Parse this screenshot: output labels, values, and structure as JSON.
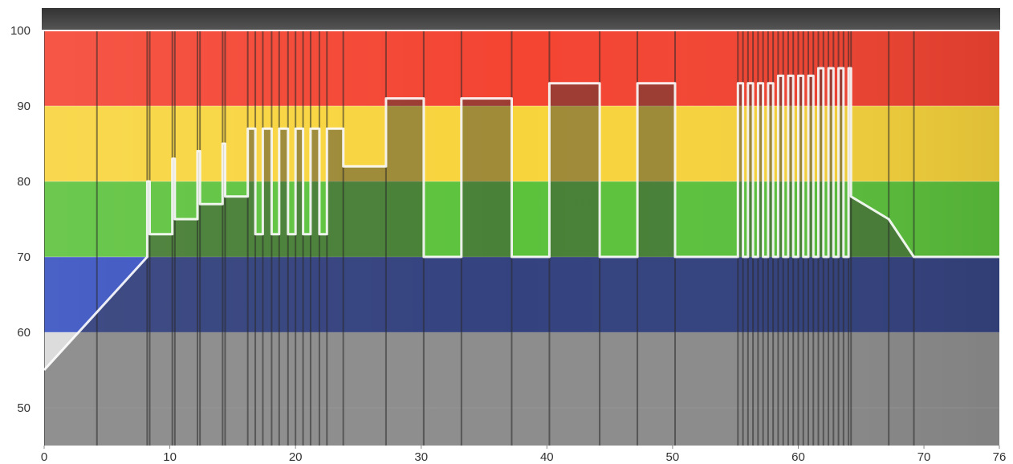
{
  "chart_data": {
    "type": "area",
    "xlim": [
      0,
      76
    ],
    "ylim": [
      45,
      100
    ],
    "x_ticks": [
      {
        "value": 0,
        "label": "0"
      },
      {
        "value": 10,
        "label": "10"
      },
      {
        "value": 20,
        "label": "20"
      },
      {
        "value": 30,
        "label": "30"
      },
      {
        "value": 40,
        "label": "40"
      },
      {
        "value": 50,
        "label": "50"
      },
      {
        "value": 60,
        "label": "60"
      },
      {
        "value": 70,
        "label": "70"
      },
      {
        "value": 76,
        "label": "76"
      }
    ],
    "y_ticks": [
      {
        "value": 50,
        "label": "50"
      },
      {
        "value": 60,
        "label": "60"
      },
      {
        "value": 70,
        "label": "70"
      },
      {
        "value": 80,
        "label": "80"
      },
      {
        "value": 90,
        "label": "90"
      },
      {
        "value": 100,
        "label": "100"
      }
    ],
    "zones": [
      {
        "from": 45,
        "to": 60,
        "color": "#d8d8d8"
      },
      {
        "from": 60,
        "to": 70,
        "color": "#3650c0"
      },
      {
        "from": 70,
        "to": 80,
        "color": "#5cc23c"
      },
      {
        "from": 80,
        "to": 90,
        "color": "#f8d43c"
      },
      {
        "from": 90,
        "to": 100,
        "color": "#f44432"
      }
    ],
    "series": [
      {
        "points": [
          [
            0,
            55
          ],
          [
            8.2,
            70
          ],
          [
            8.2,
            80
          ],
          [
            8.4,
            80
          ],
          [
            8.4,
            73
          ],
          [
            10.2,
            73
          ],
          [
            10.2,
            83
          ],
          [
            10.4,
            83
          ],
          [
            10.4,
            75
          ],
          [
            12.2,
            75
          ],
          [
            12.2,
            84
          ],
          [
            12.4,
            84
          ],
          [
            12.4,
            77
          ],
          [
            14.2,
            77
          ],
          [
            14.2,
            85
          ],
          [
            14.4,
            85
          ],
          [
            14.4,
            78
          ],
          [
            16.2,
            78
          ],
          [
            16.2,
            87
          ],
          [
            16.8,
            87
          ],
          [
            16.8,
            73
          ],
          [
            17.4,
            73
          ],
          [
            17.4,
            87
          ],
          [
            18.1,
            87
          ],
          [
            18.1,
            73
          ],
          [
            18.7,
            73
          ],
          [
            18.7,
            87
          ],
          [
            19.4,
            87
          ],
          [
            19.4,
            73
          ],
          [
            20,
            73
          ],
          [
            20,
            87
          ],
          [
            20.6,
            87
          ],
          [
            20.6,
            73
          ],
          [
            21.2,
            73
          ],
          [
            21.2,
            87
          ],
          [
            21.9,
            87
          ],
          [
            21.9,
            73
          ],
          [
            22.5,
            73
          ],
          [
            22.5,
            87
          ],
          [
            23.8,
            87
          ],
          [
            23.8,
            82
          ],
          [
            27.2,
            82
          ],
          [
            27.2,
            91
          ],
          [
            30.2,
            91
          ],
          [
            30.2,
            70
          ],
          [
            33.2,
            70
          ],
          [
            33.2,
            91
          ],
          [
            37.2,
            91
          ],
          [
            37.2,
            70
          ],
          [
            40.2,
            70
          ],
          [
            40.2,
            93
          ],
          [
            44.2,
            93
          ],
          [
            44.2,
            70
          ],
          [
            47.2,
            70
          ],
          [
            47.2,
            93
          ],
          [
            50.2,
            93
          ],
          [
            50.2,
            70
          ],
          [
            55.2,
            70
          ],
          [
            55.2,
            93
          ],
          [
            55.6,
            93
          ],
          [
            55.6,
            70
          ],
          [
            56,
            70
          ],
          [
            56,
            93
          ],
          [
            56.4,
            93
          ],
          [
            56.4,
            70
          ],
          [
            56.8,
            70
          ],
          [
            56.8,
            93
          ],
          [
            57.2,
            93
          ],
          [
            57.2,
            70
          ],
          [
            57.6,
            70
          ],
          [
            57.6,
            93
          ],
          [
            58.0,
            93
          ],
          [
            58.0,
            70
          ],
          [
            58.4,
            70
          ],
          [
            58.4,
            94
          ],
          [
            58.8,
            94
          ],
          [
            58.8,
            70
          ],
          [
            59.2,
            70
          ],
          [
            59.2,
            94
          ],
          [
            59.6,
            94
          ],
          [
            59.6,
            70
          ],
          [
            60,
            70
          ],
          [
            60,
            94
          ],
          [
            60.4,
            94
          ],
          [
            60.4,
            70
          ],
          [
            60.8,
            70
          ],
          [
            60.8,
            94
          ],
          [
            61.2,
            94
          ],
          [
            61.2,
            70
          ],
          [
            61.6,
            70
          ],
          [
            61.6,
            95
          ],
          [
            62,
            95
          ],
          [
            62,
            70
          ],
          [
            62.4,
            70
          ],
          [
            62.4,
            95
          ],
          [
            62.8,
            95
          ],
          [
            62.8,
            70
          ],
          [
            63.2,
            70
          ],
          [
            63.2,
            95
          ],
          [
            63.6,
            95
          ],
          [
            63.6,
            70
          ],
          [
            64,
            70
          ],
          [
            64,
            95
          ],
          [
            64.2,
            95
          ],
          [
            64.2,
            78
          ],
          [
            67.2,
            75
          ],
          [
            69.2,
            70
          ],
          [
            76,
            70
          ]
        ]
      }
    ],
    "grid": true
  }
}
